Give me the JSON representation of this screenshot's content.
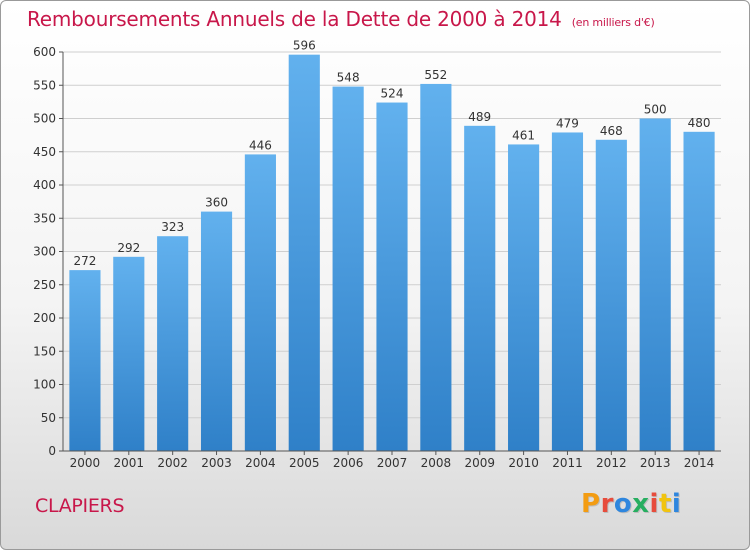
{
  "header": {
    "title": "Remboursements Annuels de la Dette de 2000 à 2014",
    "subtitle": "(en milliers d'€)"
  },
  "footer": {
    "city": "CLAPIERS",
    "logo_text": "Proxiti",
    "logo_colors": [
      "#f39c12",
      "#e74c3c",
      "#2e86de",
      "#27ae60",
      "#e74c3c",
      "#f1c40f",
      "#2e86de"
    ]
  },
  "colors": {
    "title": "#c8174a",
    "bar_top": "#62b1ee",
    "bar_bottom": "#2f80c8",
    "grid": "#cfcfcf",
    "axis": "#555555",
    "label": "#333333"
  },
  "chart_data": {
    "type": "bar",
    "categories": [
      "2000",
      "2001",
      "2002",
      "2003",
      "2004",
      "2005",
      "2006",
      "2007",
      "2008",
      "2009",
      "2010",
      "2011",
      "2012",
      "2013",
      "2014"
    ],
    "values": [
      272,
      292,
      323,
      360,
      446,
      596,
      548,
      524,
      552,
      489,
      461,
      479,
      468,
      500,
      480
    ],
    "ylim": [
      0,
      600
    ],
    "yticks": [
      0,
      50,
      100,
      150,
      200,
      250,
      300,
      350,
      400,
      450,
      500,
      550,
      600
    ],
    "grid": true,
    "data_labels": true
  }
}
